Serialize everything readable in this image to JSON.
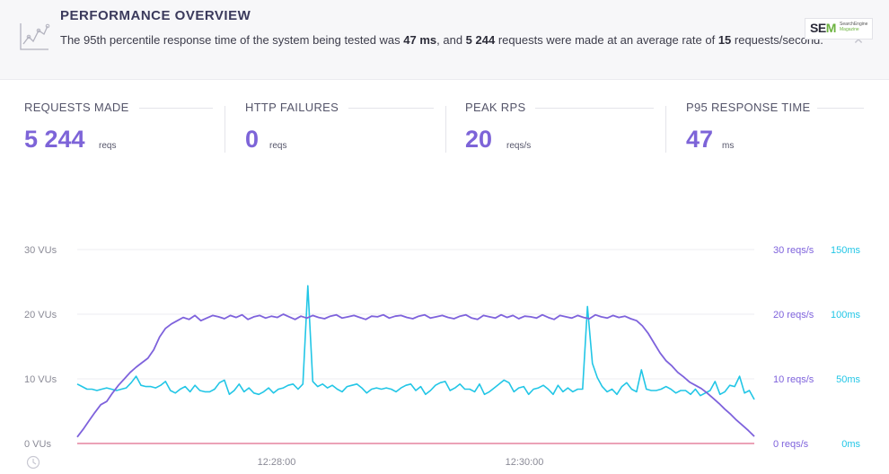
{
  "header": {
    "title": "PERFORMANCE OVERVIEW",
    "summary": {
      "prefix": "The 95th percentile response time of the system being tested was ",
      "p95": "47 ms",
      "middle": ", and ",
      "requests": "5 244",
      "middle2": " requests were made at an average rate of ",
      "rate": "15",
      "suffix": " requests/second."
    },
    "close_glyph": "✕",
    "logo": {
      "sem_s": "SE",
      "sem_m": "M",
      "sub1": "SearchEngine",
      "sub2": "Magazine"
    }
  },
  "stats": [
    {
      "label": "REQUESTS MADE",
      "value": "5 244",
      "unit": "reqs"
    },
    {
      "label": "HTTP FAILURES",
      "value": "0",
      "unit": "reqs"
    },
    {
      "label": "PEAK RPS",
      "value": "20",
      "unit": "reqs/s"
    },
    {
      "label": "P95 RESPONSE TIME",
      "value": "47",
      "unit": "ms"
    }
  ],
  "colors": {
    "vus": "#7e62dc",
    "rps": "#7e62dc",
    "response": "#22c6e6",
    "failures": "#e06a8c",
    "vu_axis": "#8a8a96",
    "rps_axis": "#7e62dc",
    "ms_axis": "#22c6e6"
  },
  "icons": {
    "overview": "chart-line-icon",
    "clock": "clock-icon",
    "close": "close-icon"
  },
  "chart_data": {
    "type": "line",
    "x_ticks": [
      "12:28:00",
      "12:30:00"
    ],
    "y_left_ticks": [
      "0 VUs",
      "10 VUs",
      "20 VUs",
      "30 VUs"
    ],
    "y_right_rps_ticks": [
      "0 reqs/s",
      "10 reqs/s",
      "20 reqs/s",
      "30 reqs/s"
    ],
    "y_right_ms_ticks": [
      "0ms",
      "50ms",
      "100ms",
      "150ms"
    ],
    "ylim_vus": [
      0,
      30
    ],
    "ylim_ms": [
      0,
      150
    ],
    "series": [
      {
        "key": "vus",
        "values": [
          1,
          2.2,
          3.5,
          4.8,
          6,
          6.5,
          7.8,
          9,
          10,
          11,
          11.8,
          12.5,
          13.2,
          14.5,
          16.5,
          17.8,
          18.5,
          19,
          19.5,
          19.2,
          19.8,
          19,
          19.4,
          19.8,
          19.6,
          19.3,
          19.8,
          19.5,
          19.9,
          19.2,
          19.6,
          19.8,
          19.4,
          19.7,
          19.5,
          20,
          19.6,
          19.2,
          19.7,
          19.4,
          19.8,
          19.5,
          19.3,
          19.7,
          19.9,
          19.4,
          19.6,
          19.8,
          19.5,
          19.2,
          19.7,
          19.6,
          19.9,
          19.4,
          19.7,
          19.8,
          19.5,
          19.3,
          19.7,
          19.9,
          19.4,
          19.6,
          19.8,
          19.5,
          19.3,
          19.7,
          19.9,
          19.4,
          19.2,
          19.8,
          19.6,
          19.4,
          19.9,
          19.5,
          19.8,
          19.3,
          19.7,
          19.6,
          19.4,
          19.9,
          19.5,
          19.2,
          19.8,
          19.6,
          19.4,
          19.8,
          19.5,
          19.3,
          19.9,
          19.6,
          19.4,
          19.8,
          19.5,
          19.7,
          19.3,
          19,
          18.2,
          17,
          15.5,
          14,
          12.8,
          12,
          11,
          10.3,
          9.5,
          9,
          8.5,
          7.8,
          7,
          6.2,
          5.3,
          4.5,
          3.6,
          2.8,
          2,
          1.1
        ]
      },
      {
        "key": "response_ms",
        "values": [
          46,
          44,
          42,
          42,
          41,
          42,
          43,
          42,
          41,
          42,
          43,
          47,
          52,
          45,
          44,
          44,
          43,
          45,
          48,
          41,
          39,
          42,
          44,
          40,
          45,
          41,
          40,
          40,
          42,
          47,
          49,
          38,
          41,
          46,
          40,
          43,
          39,
          38,
          40,
          43,
          39,
          42,
          43,
          45,
          46,
          42,
          46,
          122,
          48,
          44,
          46,
          43,
          45,
          42,
          40,
          44,
          45,
          46,
          43,
          39,
          42,
          43,
          42,
          43,
          42,
          40,
          43,
          45,
          46,
          41,
          44,
          38,
          41,
          45,
          47,
          48,
          41,
          43,
          46,
          42,
          42,
          40,
          46,
          38,
          40,
          43,
          46,
          49,
          47,
          40,
          43,
          44,
          38,
          42,
          43,
          45,
          42,
          38,
          45,
          40,
          43,
          40,
          42,
          42,
          106,
          62,
          51,
          44,
          40,
          42,
          38,
          44,
          47,
          42,
          40,
          57,
          42,
          41,
          41,
          42,
          44,
          42,
          39,
          41,
          41,
          38,
          42,
          37,
          39,
          41,
          48,
          38,
          40,
          45,
          44,
          52,
          39,
          41,
          34
        ]
      },
      {
        "key": "failures",
        "values": [
          0,
          0
        ]
      }
    ]
  }
}
